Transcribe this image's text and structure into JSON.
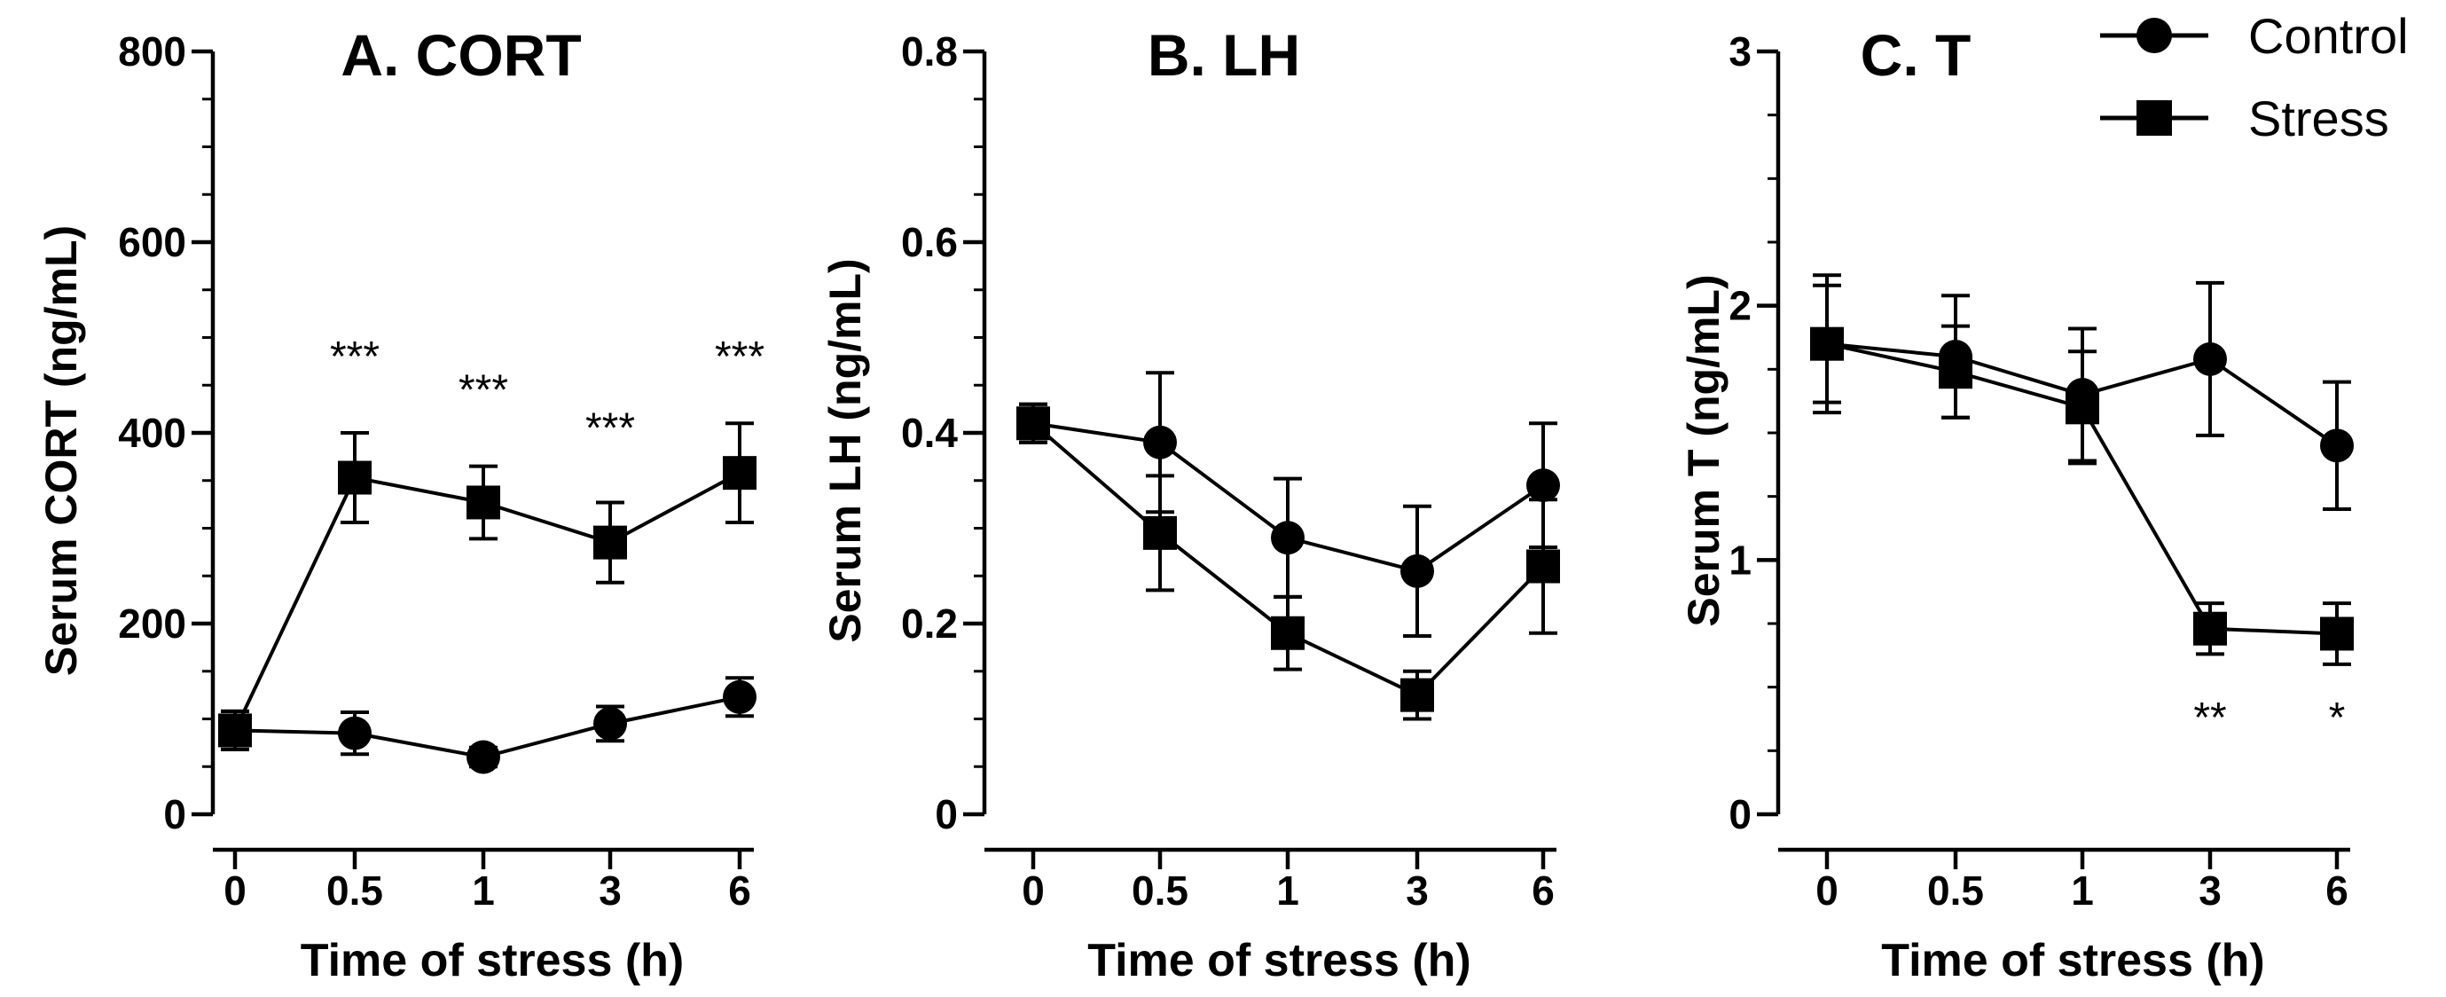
{
  "chart_data": [
    {
      "type": "line",
      "title": "A. CORT",
      "xlabel": "Time of stress  (h)",
      "ylabel": "Serum CORT  (ng/mL)",
      "categories": [
        "0",
        "0.5",
        "1",
        "3",
        "6"
      ],
      "yticks": [
        "0",
        "200",
        "400",
        "600",
        "800"
      ],
      "ylim": [
        0,
        800
      ],
      "series": [
        {
          "name": "Control",
          "marker": "circle",
          "values": [
            88,
            85,
            60,
            95,
            123
          ],
          "errors": [
            20,
            22,
            10,
            18,
            20
          ]
        },
        {
          "name": "Stress",
          "marker": "square",
          "values": [
            88,
            353,
            327,
            285,
            358
          ],
          "errors": [
            20,
            47,
            38,
            42,
            52
          ]
        }
      ],
      "annotations": [
        {
          "category": "0.5",
          "text": "***",
          "value": 480
        },
        {
          "category": "1",
          "text": "***",
          "value": 445
        },
        {
          "category": "3",
          "text": "***",
          "value": 405
        },
        {
          "category": "6",
          "text": "***",
          "value": 480
        }
      ]
    },
    {
      "type": "line",
      "title": "B. LH",
      "xlabel": "Time of stress  (h)",
      "ylabel": "Serum LH (ng/mL)",
      "categories": [
        "0",
        "0.5",
        "1",
        "3",
        "6"
      ],
      "yticks": [
        "0",
        "0.2",
        "0.4",
        "0.6",
        "0.8"
      ],
      "ylim": [
        0,
        0.8
      ],
      "series": [
        {
          "name": "Control",
          "marker": "circle",
          "values": [
            0.41,
            0.39,
            0.29,
            0.255,
            0.345
          ],
          "errors": [
            0.02,
            0.073,
            0.062,
            0.068,
            0.065
          ]
        },
        {
          "name": "Stress",
          "marker": "square",
          "values": [
            0.41,
            0.295,
            0.19,
            0.125,
            0.26
          ],
          "errors": [
            0.02,
            0.06,
            0.038,
            0.025,
            0.07
          ]
        }
      ],
      "annotations": []
    },
    {
      "type": "line",
      "title": "C. T",
      "xlabel": "Time of stress  (h)",
      "ylabel": "Serum T  (ng/mL)",
      "categories": [
        "0",
        "0.5",
        "1",
        "3",
        "6"
      ],
      "yticks": [
        "0",
        "1",
        "2",
        "3"
      ],
      "ylim": [
        0,
        3
      ],
      "series": [
        {
          "name": "Control",
          "marker": "circle",
          "values": [
            1.85,
            1.8,
            1.65,
            1.79,
            1.45
          ],
          "errors": [
            0.23,
            0.24,
            0.26,
            0.3,
            0.25
          ]
        },
        {
          "name": "Stress",
          "marker": "square",
          "values": [
            1.85,
            1.74,
            1.6,
            0.73,
            0.71
          ],
          "errors": [
            0.27,
            0.18,
            0.22,
            0.1,
            0.12
          ]
        }
      ],
      "annotations": [
        {
          "category": "3",
          "text": "**",
          "value": 0.38
        },
        {
          "category": "6",
          "text": "*",
          "value": 0.38
        }
      ]
    }
  ],
  "legend": {
    "items": [
      {
        "label": "Control",
        "marker": "circle"
      },
      {
        "label": "Stress",
        "marker": "square"
      }
    ],
    "position": "top-right"
  }
}
